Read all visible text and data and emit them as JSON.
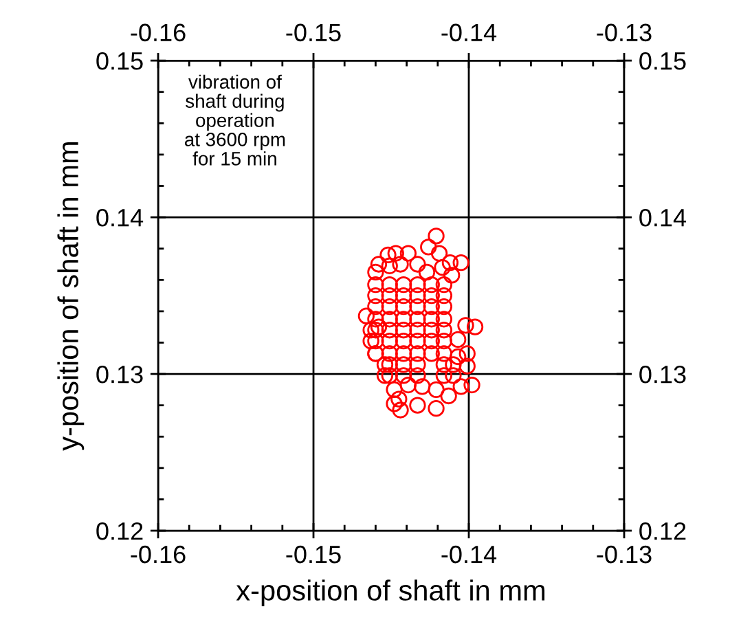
{
  "chart_data": {
    "type": "scatter",
    "xlabel": "x-position of shaft in mm",
    "ylabel": "y-position of shaft in mm",
    "annotations": [
      "vibration of\nshaft during\noperation\nat 3600 rpm\nfor 15 min"
    ],
    "xlim": [
      -0.16,
      -0.13
    ],
    "xticks": [
      -0.16,
      -0.15,
      -0.14,
      -0.13
    ],
    "x2lim": [
      -0.16,
      -0.13
    ],
    "x2ticks": [
      -0.16,
      -0.15,
      -0.14,
      -0.13
    ],
    "ylim": [
      0.12,
      0.15
    ],
    "yticks": [
      0.12,
      0.13,
      0.14,
      0.15
    ],
    "y2lim": [
      0.12,
      0.15
    ],
    "y2ticks": [
      0.12,
      0.13,
      0.14,
      0.15
    ],
    "grid": true,
    "marker": "circle",
    "series": [
      {
        "color": "#ff0000",
        "x": [
          -0.1421,
          -0.1426,
          -0.1419,
          -0.1412,
          -0.1405,
          -0.1452,
          -0.1447,
          -0.1439,
          -0.1458,
          -0.1451,
          -0.1444,
          -0.1433,
          -0.146,
          -0.1427,
          -0.1417,
          -0.1411,
          -0.146,
          -0.1451,
          -0.1442,
          -0.1433,
          -0.1424,
          -0.1416,
          -0.146,
          -0.1451,
          -0.1442,
          -0.1433,
          -0.1424,
          -0.1416,
          -0.146,
          -0.1451,
          -0.1442,
          -0.1433,
          -0.1424,
          -0.1416,
          -0.146,
          -0.1451,
          -0.1442,
          -0.1433,
          -0.1424,
          -0.1416,
          -0.146,
          -0.1451,
          -0.1442,
          -0.1433,
          -0.1424,
          -0.1416,
          -0.146,
          -0.1451,
          -0.1442,
          -0.1433,
          -0.1424,
          -0.1416,
          -0.146,
          -0.1451,
          -0.1442,
          -0.1433,
          -0.1424,
          -0.1416,
          -0.1451,
          -0.1442,
          -0.1433,
          -0.1416,
          -0.141,
          -0.1451,
          -0.1442,
          -0.1433,
          -0.1416,
          -0.141,
          -0.1402,
          -0.1396,
          -0.1407,
          -0.1401,
          -0.1407,
          -0.1401,
          -0.1398,
          -0.1405,
          -0.1448,
          -0.1439,
          -0.143,
          -0.1421,
          -0.1448,
          -0.1444,
          -0.1433,
          -0.1421,
          -0.1413,
          -0.1445,
          -0.1466,
          -0.1463,
          -0.1463,
          -0.146,
          -0.1458,
          -0.1454,
          -0.1454
        ],
        "values": [
          0.1388,
          0.1381,
          0.1377,
          0.1371,
          0.1371,
          0.1376,
          0.1377,
          0.1377,
          0.137,
          0.1369,
          0.137,
          0.137,
          0.1365,
          0.1365,
          0.1368,
          0.1363,
          0.1357,
          0.1357,
          0.1357,
          0.1357,
          0.1357,
          0.1357,
          0.135,
          0.135,
          0.135,
          0.135,
          0.135,
          0.135,
          0.1343,
          0.1343,
          0.1343,
          0.1343,
          0.1343,
          0.1343,
          0.1335,
          0.1335,
          0.1335,
          0.1335,
          0.1335,
          0.1335,
          0.1328,
          0.1328,
          0.1328,
          0.1328,
          0.1328,
          0.1328,
          0.1321,
          0.1321,
          0.1321,
          0.1321,
          0.1321,
          0.1321,
          0.1313,
          0.1313,
          0.1313,
          0.1313,
          0.1313,
          0.1313,
          0.1306,
          0.1306,
          0.1306,
          0.1306,
          0.1306,
          0.1299,
          0.1299,
          0.1299,
          0.1299,
          0.1299,
          0.1331,
          0.133,
          0.1322,
          0.1313,
          0.1311,
          0.1305,
          0.1293,
          0.1292,
          0.129,
          0.1293,
          0.1292,
          0.129,
          0.1281,
          0.1277,
          0.128,
          0.1278,
          0.1286,
          0.1284,
          0.1337,
          0.1328,
          0.1321,
          0.1313,
          0.133,
          0.1306,
          0.1299
        ]
      }
    ]
  }
}
